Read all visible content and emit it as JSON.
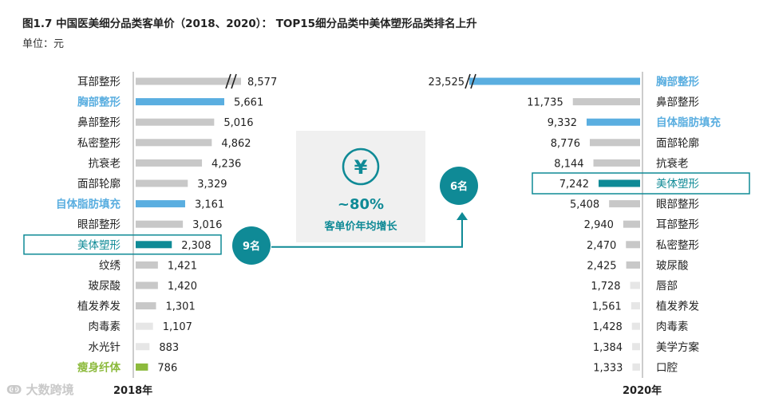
{
  "header": {
    "title": "图1.7 中国医美细分品类客单价（2018、2020）： TOP15细分品类中美体塑形品类排名上升",
    "unit": "单位：元"
  },
  "watermark": "大数跨境",
  "colors": {
    "gray": "#c8c8c8",
    "lightGray": "#e6e6e6",
    "blue": "#5aaee0",
    "teal": "#0f8a96",
    "green": "#8cba3c",
    "boxBg": "#f0f0f0"
  },
  "chart_data": [
    {
      "type": "bar",
      "orientation": "horizontal",
      "title": "2018年",
      "xlabel": "2018年",
      "categories": [
        "耳部整形",
        "胸部整形",
        "鼻部整形",
        "私密整形",
        "抗衰老",
        "面部轮廓",
        "自体脂肪填充",
        "眼部整形",
        "美体塑形",
        "纹绣",
        "玻尿酸",
        "植发养发",
        "肉毒素",
        "水光针",
        "瘦身纤体"
      ],
      "values": [
        8577,
        5661,
        5016,
        4862,
        4236,
        3329,
        3161,
        3016,
        2308,
        1421,
        1420,
        1301,
        1107,
        883,
        786
      ],
      "value_labels": [
        "8,577",
        "5,661",
        "5,016",
        "4,862",
        "4,236",
        "3,329",
        "3,161",
        "3,016",
        "2,308",
        "1,421",
        "1,420",
        "1,301",
        "1,107",
        "883",
        "786"
      ],
      "highlight": {
        "胸部整形": "blue",
        "自体脂肪填充": "blue",
        "美体塑形": "teal",
        "瘦身纤体": "green"
      },
      "axis_break_on": "耳部整形"
    },
    {
      "type": "bar",
      "orientation": "horizontal",
      "title": "2020年",
      "xlabel": "2020年",
      "categories": [
        "胸部整形",
        "鼻部整形",
        "自体脂肪填充",
        "面部轮廓",
        "抗衰老",
        "美体塑形",
        "眼部整形",
        "耳部整形",
        "私密整形",
        "玻尿酸",
        "唇部",
        "植发养发",
        "肉毒素",
        "美学方案",
        "口腔"
      ],
      "values": [
        23525,
        11735,
        9332,
        8776,
        8144,
        7242,
        5408,
        2940,
        2470,
        2425,
        1728,
        1561,
        1428,
        1384,
        1333
      ],
      "value_labels": [
        "23,525",
        "11,735",
        "9,332",
        "8,776",
        "8,144",
        "7,242",
        "5,408",
        "2,940",
        "2,470",
        "2,425",
        "1,728",
        "1,561",
        "1,428",
        "1,384",
        "1,333"
      ],
      "highlight": {
        "胸部整形": "blue",
        "自体脂肪填充": "blue",
        "美体塑形": "teal"
      },
      "axis_break_on": "胸部整形"
    }
  ],
  "annotation": {
    "icon": "yen-icon",
    "growth_value": "~80%",
    "growth_label": "客单价年均增长",
    "rank_2018": "9名",
    "rank_2020": "6名",
    "highlight_category": "美体塑形"
  }
}
